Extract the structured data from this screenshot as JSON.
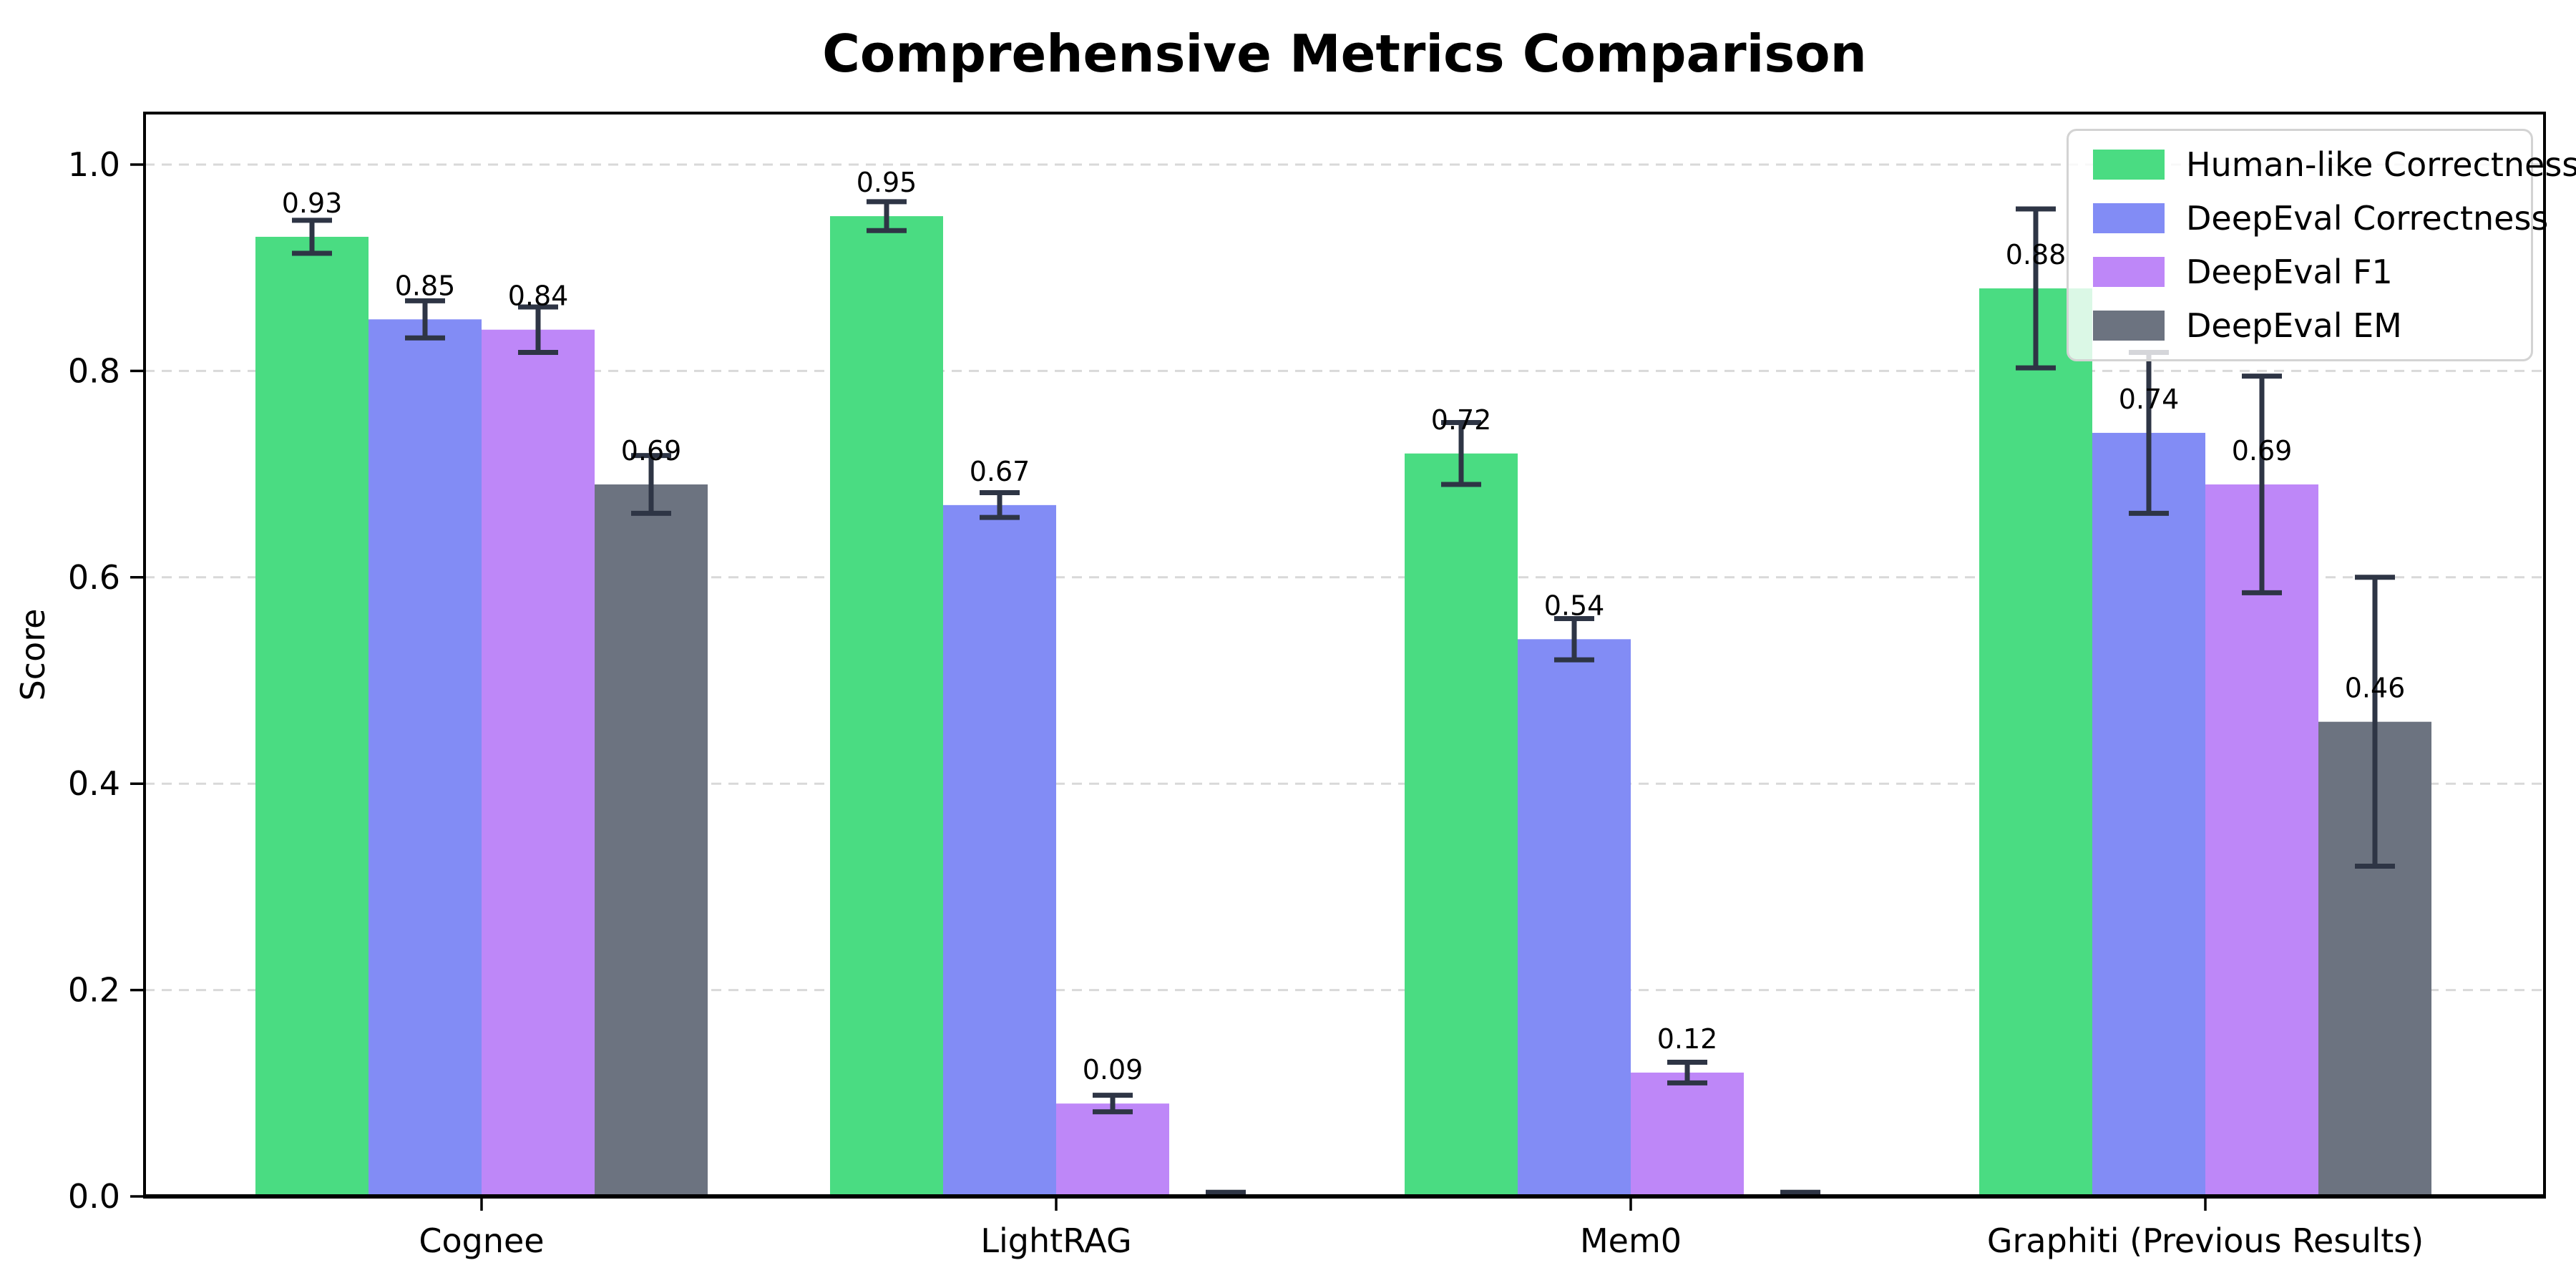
{
  "title": "Comprehensive Metrics Comparison",
  "chart_data": {
    "type": "bar",
    "title": "Comprehensive Metrics Comparison",
    "xlabel": "",
    "ylabel": "Score",
    "ylim": [
      0,
      1.05
    ],
    "grid": "horizontal dashed lines at 0.2 intervals",
    "legend_position": "upper right",
    "categories": [
      "Cognee",
      "LightRAG",
      "Mem0",
      "Graphiti (Previous Results)"
    ],
    "y_tick_values": [
      0.0,
      0.2,
      0.4,
      0.6,
      0.8,
      1.0
    ],
    "y_tick_labels": [
      "0.0",
      "0.2",
      "0.4",
      "0.6",
      "0.8",
      "1.0"
    ],
    "series": [
      {
        "name": "Human-like Correctness",
        "color": "#4ADC82",
        "values": [
          0.93,
          0.95,
          0.72,
          0.88
        ],
        "errors": [
          0.016,
          0.014,
          0.03,
          0.077
        ],
        "labels": [
          "0.93",
          "0.95",
          "0.72",
          "0.88"
        ]
      },
      {
        "name": "DeepEval Correctness",
        "color": "#828CF5",
        "values": [
          0.85,
          0.67,
          0.54,
          0.74
        ],
        "errors": [
          0.018,
          0.012,
          0.02,
          0.078
        ],
        "labels": [
          "0.85",
          "0.67",
          "0.54",
          "0.74"
        ]
      },
      {
        "name": "DeepEval F1",
        "color": "#BE87F8",
        "values": [
          0.84,
          0.09,
          0.12,
          0.69
        ],
        "errors": [
          0.022,
          0.008,
          0.01,
          0.105
        ],
        "labels": [
          "0.84",
          "0.09",
          "0.12",
          "0.69"
        ]
      },
      {
        "name": "DeepEval EM",
        "color": "#6C7380",
        "values": [
          0.69,
          0.0,
          0.0,
          0.46
        ],
        "errors": [
          0.028,
          0.004,
          0.004,
          0.14
        ],
        "labels": [
          "0.69",
          "",
          "",
          "0.46"
        ]
      }
    ]
  },
  "colors": {
    "error_bar": "#2E3545",
    "grid": "#D9D9D9",
    "axis": "#000000",
    "legend_border": "#D3D3D3",
    "text": "#000000"
  }
}
